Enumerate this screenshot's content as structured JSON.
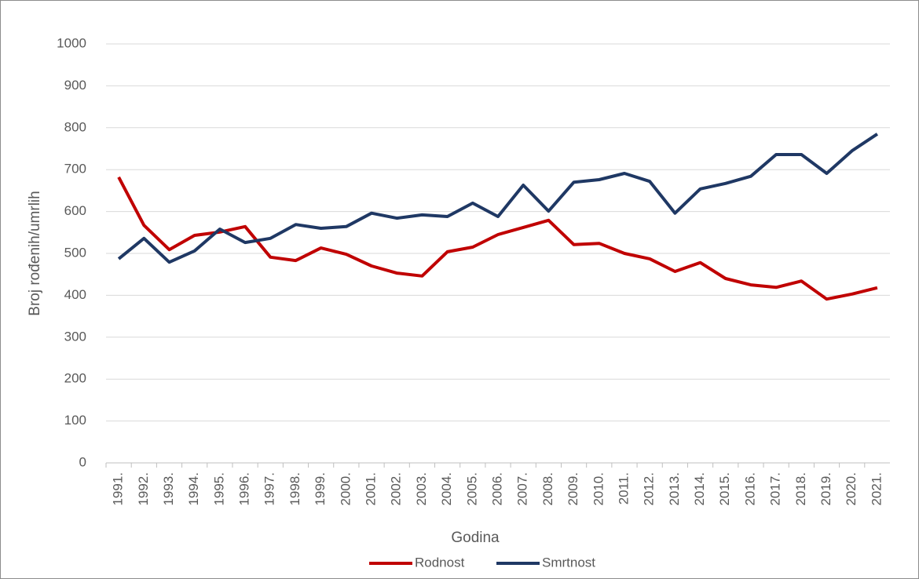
{
  "chart_data": {
    "type": "line",
    "x_label": "Godina",
    "y_label": "Broj rođenih/umrlih",
    "categories": [
      "1991.",
      "1992.",
      "1993.",
      "1994.",
      "1995.",
      "1996.",
      "1997.",
      "1998.",
      "1999.",
      "2000.",
      "2001.",
      "2002.",
      "2003.",
      "2004.",
      "2005.",
      "2006.",
      "2007.",
      "2008.",
      "2009.",
      "2010.",
      "2011.",
      "2012.",
      "2013.",
      "2014.",
      "2015.",
      "2016.",
      "2017.",
      "2018.",
      "2019.",
      "2020.",
      "2021."
    ],
    "series": [
      {
        "name": "Rodnost",
        "color": "#c00000",
        "values": [
          682,
          567,
          509,
          543,
          551,
          564,
          491,
          483,
          513,
          498,
          470,
          453,
          446,
          504,
          515,
          545,
          562,
          579,
          521,
          524,
          500,
          487,
          457,
          478,
          440,
          425,
          419,
          434,
          391,
          403,
          418
        ]
      },
      {
        "name": "Smrtnost",
        "color": "#1f3864",
        "values": [
          487,
          536,
          479,
          506,
          558,
          526,
          536,
          569,
          560,
          564,
          596,
          584,
          592,
          588,
          620,
          588,
          663,
          601,
          670,
          676,
          691,
          672,
          596,
          654,
          667,
          684,
          736,
          736,
          691,
          745,
          785
        ]
      }
    ],
    "ylim": [
      0,
      1000
    ],
    "yticks": [
      0,
      100,
      200,
      300,
      400,
      500,
      600,
      700,
      800,
      900,
      1000
    ],
    "grid": true,
    "legend": "bottom"
  }
}
